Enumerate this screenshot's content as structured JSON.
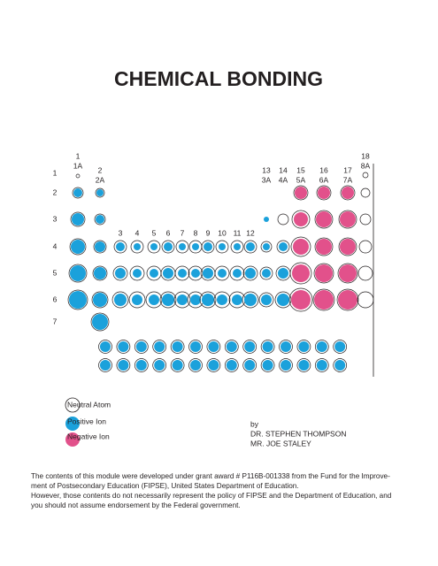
{
  "header": {
    "title": "CHEMICAL BONDING"
  },
  "table": {
    "groups": [
      {
        "number": "1",
        "name": "1A"
      },
      {
        "number": "2",
        "name": "2A"
      },
      {
        "number": "13",
        "name": "3A"
      },
      {
        "number": "14",
        "name": "4A"
      },
      {
        "number": "15",
        "name": "5A"
      },
      {
        "number": "16",
        "name": "6A"
      },
      {
        "number": "17",
        "name": "7A"
      },
      {
        "number": "18",
        "name": "8A"
      }
    ],
    "transition_groups": [
      "3",
      "4",
      "5",
      "6",
      "7",
      "8",
      "9",
      "10",
      "11",
      "12"
    ],
    "periods": [
      "1",
      "2",
      "3",
      "4",
      "5",
      "6",
      "7"
    ]
  },
  "legend": [
    "Neutral Atom",
    "Positive Ion",
    "Negative Ion"
  ],
  "credits": {
    "by": "by",
    "authors": [
      "DR. STEPHEN THOMPSON",
      "MR. JOE STALEY"
    ]
  },
  "footer": [
    "The contents of this module were developed under grant award # P116B-001338 from the Fund for the Improve-",
    "ment of Postsecondary Education (FIPSE), United States Department of Education.",
    "However, those contents do not necessarily represent the policy of FIPSE and the Department of Education, and",
    "you should not assume endorsement by the Federal government."
  ]
}
